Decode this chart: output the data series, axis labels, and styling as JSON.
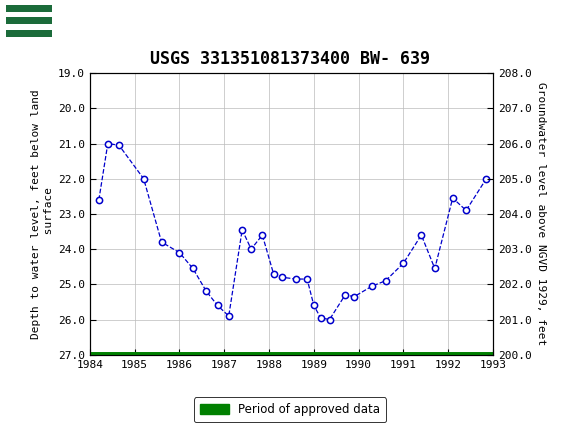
{
  "title": "USGS 331351081373400 BW- 639",
  "ylabel_left": "Depth to water level, feet below land\n surface",
  "ylabel_right": "Groundwater level above NGVD 1929, feet",
  "xlim": [
    1984,
    1993
  ],
  "ylim_left": [
    19.0,
    27.0
  ],
  "ylim_right": [
    200.0,
    208.0
  ],
  "x_ticks": [
    1984,
    1985,
    1986,
    1987,
    1988,
    1989,
    1990,
    1991,
    1992,
    1993
  ],
  "y_ticks_left": [
    19.0,
    20.0,
    21.0,
    22.0,
    23.0,
    24.0,
    25.0,
    26.0,
    27.0
  ],
  "y_ticks_right": [
    200.0,
    201.0,
    202.0,
    203.0,
    204.0,
    205.0,
    206.0,
    207.0,
    208.0
  ],
  "data_x": [
    1984.2,
    1984.4,
    1984.65,
    1985.2,
    1985.6,
    1986.0,
    1986.3,
    1986.6,
    1986.85,
    1987.1,
    1987.4,
    1987.6,
    1987.85,
    1988.1,
    1988.3,
    1988.6,
    1988.85,
    1989.0,
    1989.15,
    1989.35,
    1989.7,
    1989.9,
    1990.3,
    1990.6,
    1991.0,
    1991.4,
    1991.7,
    1992.1,
    1992.4,
    1992.85
  ],
  "data_y": [
    22.6,
    21.0,
    21.05,
    22.0,
    23.8,
    24.1,
    24.55,
    25.2,
    25.6,
    25.9,
    23.45,
    24.0,
    23.6,
    24.7,
    24.8,
    24.85,
    24.85,
    25.6,
    25.95,
    26.0,
    25.3,
    25.35,
    25.05,
    24.9,
    24.4,
    23.6,
    24.55,
    22.55,
    22.9,
    22.0
  ],
  "green_bar_xstart": 1984.0,
  "green_bar_xend": 1993.0,
  "green_bar_y": 27.0,
  "green_color": "#008000",
  "line_color": "#0000CC",
  "marker_color": "#0000CC",
  "marker_face": "#FFFFFF",
  "background_color": "#FFFFFF",
  "header_color": "#1B6B3A",
  "grid_color": "#BBBBBB",
  "title_fontsize": 12,
  "tick_fontsize": 8,
  "label_fontsize": 8,
  "legend_label": "Period of approved data",
  "usgs_text": "USGS"
}
